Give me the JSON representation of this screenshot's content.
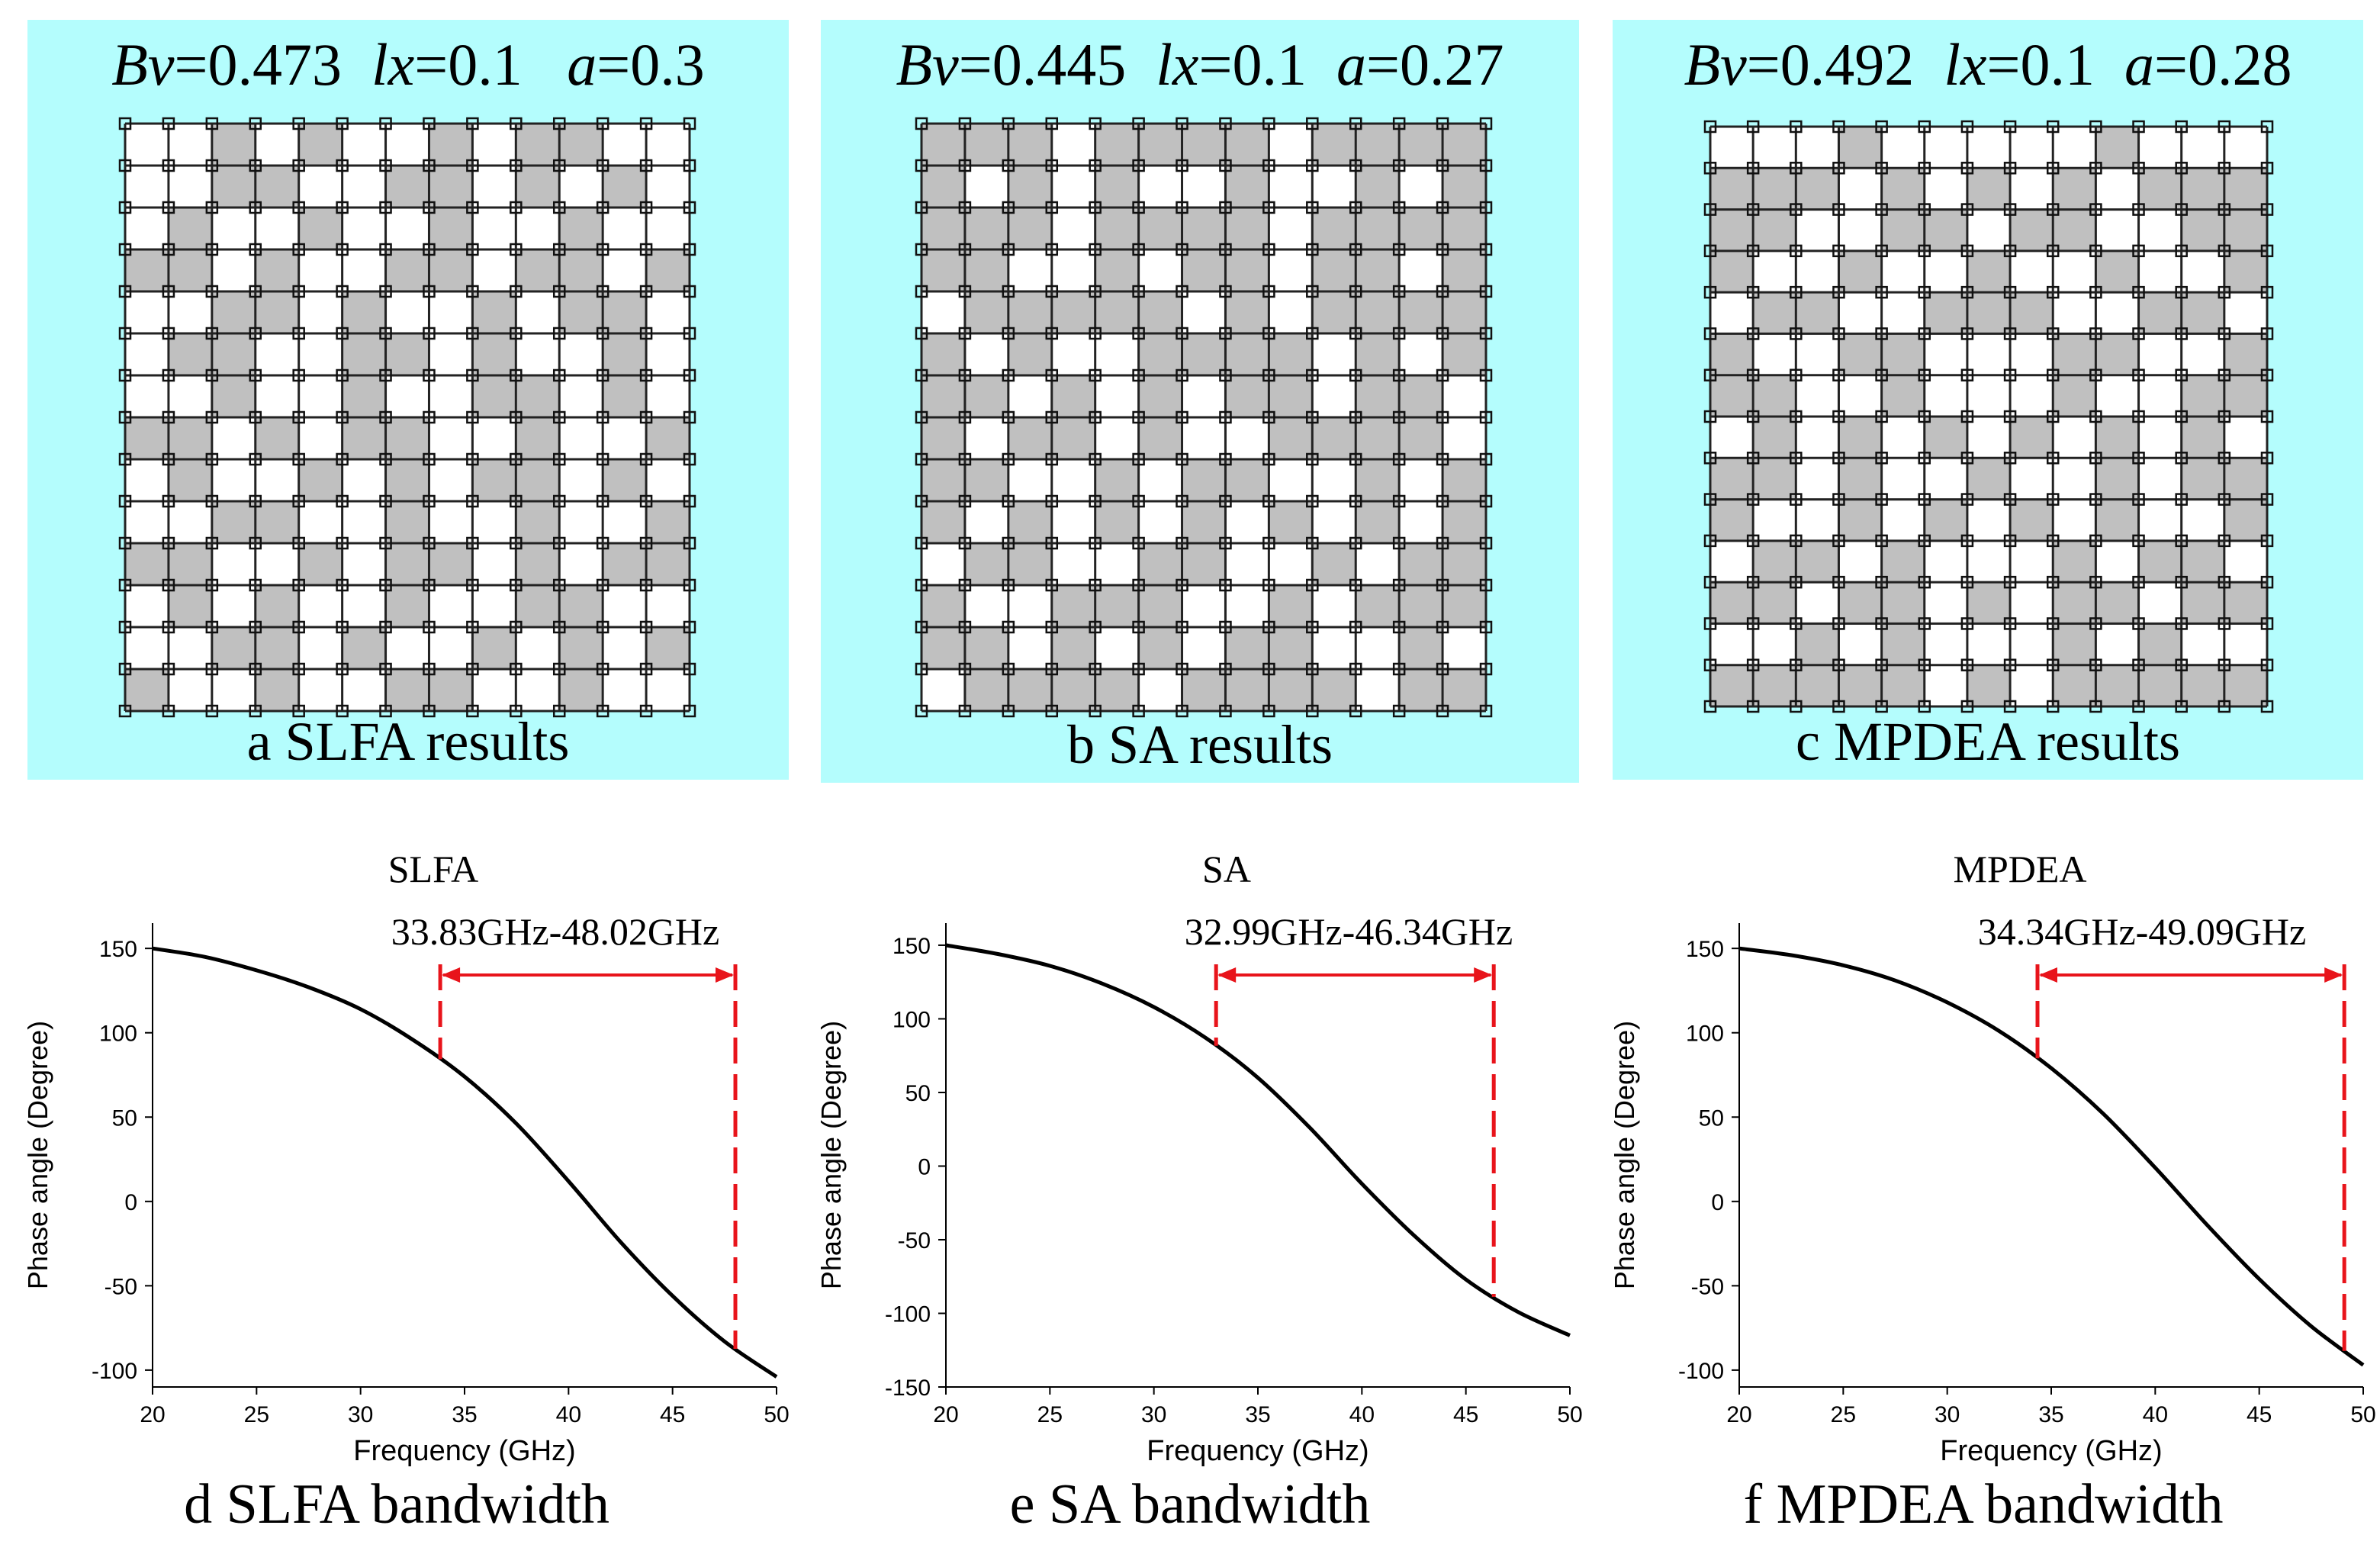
{
  "panels": [
    {
      "bv_label": "Bv",
      "bv_value": "=0.473",
      "lx_label": "lx",
      "lx_value": "=0.1",
      "a_label": "a",
      "a_value": "=0.3",
      "caption": "a SLFA results"
    },
    {
      "bv_label": "Bv",
      "bv_value": "=0.445",
      "lx_label": "lx",
      "lx_value": "=0.1",
      "a_label": "a",
      "a_value": "=0.27",
      "caption": "b SA results"
    },
    {
      "bv_label": "Bv",
      "bv_value": "=0.492",
      "lx_label": "lx",
      "lx_value": "=0.1",
      "a_label": "a",
      "a_value": "=0.28",
      "caption": "c MPDEA results"
    }
  ],
  "colors": {
    "panel_background": "#b4fdfd",
    "filled_cell": "#c0c0c0",
    "empty_cell": "#ffffff",
    "curve": "#000000",
    "bandwidth_marker": "#e8141b"
  },
  "chart_data": [
    {
      "type": "line",
      "title": "SLFA",
      "annotation": "33.83GHz-48.02GHz",
      "band": [
        33.83,
        48.02
      ],
      "xlabel": "Frequency (GHz)",
      "ylabel": "Phase angle (Degree)",
      "xlim": [
        20,
        50
      ],
      "ylim": [
        -110,
        165
      ],
      "xticks": [
        20,
        25,
        30,
        35,
        40,
        45,
        50
      ],
      "yticks": [
        -100,
        -50,
        0,
        50,
        100,
        150
      ],
      "grid": false,
      "x": [
        20,
        22.5,
        25,
        27.5,
        30,
        32.5,
        35,
        37.5,
        40,
        42.5,
        45,
        47.5,
        50
      ],
      "y": [
        150,
        145,
        137,
        127,
        114,
        96,
        74,
        46,
        12,
        -24,
        -56,
        -83,
        -104
      ],
      "caption": "d SLFA bandwidth"
    },
    {
      "type": "line",
      "title": "SA",
      "annotation": "32.99GHz-46.34GHz",
      "band": [
        32.99,
        46.34
      ],
      "xlabel": "Frequency (GHz)",
      "ylabel": "Phase angle (Degree)",
      "xlim": [
        20,
        50
      ],
      "ylim": [
        -150,
        165
      ],
      "xticks": [
        20,
        25,
        30,
        35,
        40,
        45,
        50
      ],
      "yticks": [
        -150,
        -100,
        -50,
        0,
        50,
        100,
        150
      ],
      "grid": false,
      "x": [
        20,
        22.5,
        25,
        27.5,
        30,
        32.5,
        35,
        37.5,
        40,
        42.5,
        45,
        47.5,
        50
      ],
      "y": [
        150,
        144,
        136,
        124,
        108,
        87,
        60,
        26,
        -12,
        -47,
        -77,
        -99,
        -115
      ],
      "caption": "e SA bandwidth"
    },
    {
      "type": "line",
      "title": "MPDEA",
      "annotation": "34.34GHz-49.09GHz",
      "band": [
        34.34,
        49.09
      ],
      "xlabel": "Frequency (GHz)",
      "ylabel": "Phase angle (Degree)",
      "xlim": [
        20,
        50
      ],
      "ylim": [
        -110,
        165
      ],
      "xticks": [
        20,
        25,
        30,
        35,
        40,
        45,
        50
      ],
      "yticks": [
        -100,
        -50,
        0,
        50,
        100,
        150
      ],
      "grid": false,
      "x": [
        20,
        22.5,
        25,
        27.5,
        30,
        32.5,
        35,
        37.5,
        40,
        42.5,
        45,
        47.5,
        50
      ],
      "y": [
        150,
        146,
        140,
        131,
        118,
        101,
        79,
        52,
        20,
        -14,
        -46,
        -74,
        -97
      ],
      "caption": "f MPDEA bandwidth"
    }
  ]
}
